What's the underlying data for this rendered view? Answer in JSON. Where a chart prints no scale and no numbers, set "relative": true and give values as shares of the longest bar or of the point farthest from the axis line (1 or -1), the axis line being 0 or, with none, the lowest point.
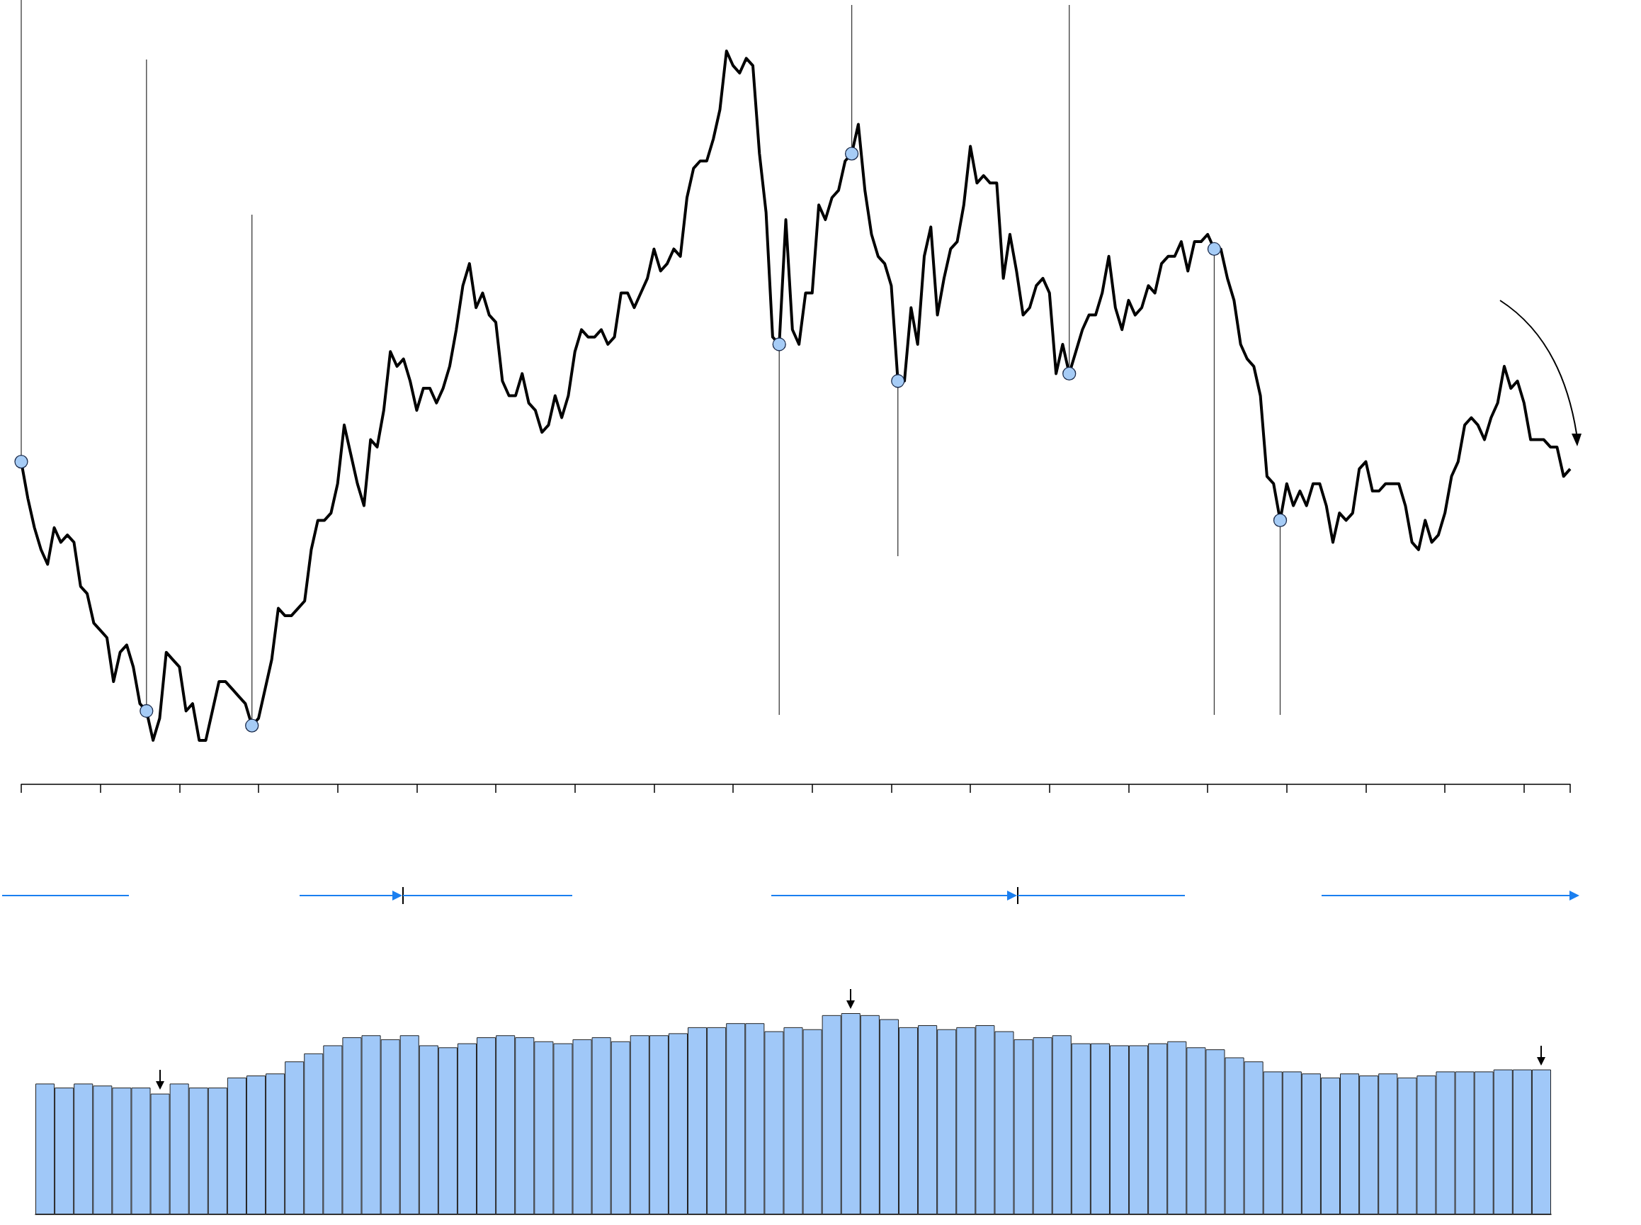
{
  "chart_data": [
    {
      "type": "line",
      "relative": true,
      "categories": [
        null,
        null,
        null,
        null,
        null,
        null,
        null,
        null,
        null,
        null,
        null,
        null,
        null,
        null,
        null,
        null,
        null,
        null,
        null,
        null,
        null,
        null,
        null,
        null,
        null,
        null,
        null,
        null,
        null,
        null,
        null,
        null,
        null,
        null,
        null,
        null,
        null,
        null,
        null,
        null,
        null,
        null,
        null,
        null,
        null,
        null,
        null,
        null,
        null,
        null,
        null,
        null,
        null,
        null,
        null,
        null,
        null,
        null,
        null,
        null,
        null,
        null,
        null,
        null,
        null,
        null,
        null,
        null,
        null,
        null,
        null,
        null,
        null,
        null,
        null,
        null,
        null,
        null,
        null,
        null,
        null,
        null,
        null,
        null,
        null,
        null,
        null,
        null,
        null,
        null,
        null,
        null,
        null,
        null,
        null,
        null,
        null,
        null,
        null,
        null,
        null,
        null,
        null,
        null,
        null,
        null,
        null,
        null,
        null,
        null,
        null,
        null,
        null,
        null,
        null,
        null,
        null,
        null,
        null,
        null,
        null,
        null,
        null,
        null,
        null,
        null,
        null,
        null,
        null,
        null,
        null,
        null,
        null,
        null,
        null,
        null,
        null,
        null,
        null,
        null,
        null,
        null,
        null,
        null,
        null,
        null,
        null,
        null,
        null,
        null,
        null,
        null,
        null,
        null,
        null,
        null,
        null,
        null,
        null,
        null,
        null,
        null,
        null,
        null,
        null,
        null,
        null,
        null,
        null,
        null,
        null,
        null,
        null,
        null,
        null,
        null,
        null,
        null,
        null,
        null,
        null,
        null,
        null,
        null,
        null,
        null,
        null,
        null,
        null,
        null,
        null,
        null,
        null,
        null,
        null,
        null,
        null,
        null,
        null,
        null,
        null,
        null,
        null,
        null,
        null,
        null,
        null,
        null,
        null,
        null,
        null,
        null,
        null,
        null,
        null,
        null,
        null,
        null,
        null,
        null,
        null,
        null,
        null,
        null,
        null,
        null,
        null,
        null,
        null,
        null,
        null,
        null,
        null,
        null,
        null,
        null
      ],
      "series": [
        {
          "type": "line",
          "color": "#000000",
          "values": [
            0.44,
            0.39,
            0.35,
            0.32,
            0.3,
            0.35,
            0.33,
            0.34,
            0.33,
            0.27,
            0.26,
            0.22,
            0.21,
            0.2,
            0.14,
            0.18,
            0.19,
            0.16,
            0.11,
            0.1,
            0.06,
            0.09,
            0.18,
            0.17,
            0.16,
            0.1,
            0.11,
            0.06,
            0.06,
            0.1,
            0.14,
            0.14,
            0.13,
            0.12,
            0.11,
            0.08,
            0.09,
            0.13,
            0.17,
            0.24,
            0.23,
            0.23,
            0.24,
            0.25,
            0.32,
            0.36,
            0.36,
            0.37,
            0.41,
            0.49,
            0.45,
            0.41,
            0.38,
            0.47,
            0.46,
            0.51,
            0.59,
            0.57,
            0.58,
            0.55,
            0.51,
            0.54,
            0.54,
            0.52,
            0.54,
            0.57,
            0.62,
            0.68,
            0.71,
            0.65,
            0.67,
            0.64,
            0.63,
            0.55,
            0.53,
            0.53,
            0.56,
            0.52,
            0.51,
            0.48,
            0.49,
            0.53,
            0.5,
            0.53,
            0.59,
            0.62,
            0.61,
            0.61,
            0.62,
            0.6,
            0.61,
            0.67,
            0.67,
            0.65,
            0.67,
            0.69,
            0.73,
            0.7,
            0.71,
            0.73,
            0.72,
            0.8,
            0.84,
            0.85,
            0.85,
            0.88,
            0.92,
            1,
            0.98,
            0.97,
            0.99,
            0.98,
            0.86,
            0.78,
            0.61,
            0.6,
            0.77,
            0.62,
            0.6,
            0.67,
            0.67,
            0.79,
            0.77,
            0.8,
            0.81,
            0.85,
            0.86,
            0.9,
            0.81,
            0.75,
            0.72,
            0.71,
            0.68,
            0.55,
            0.55,
            0.65,
            0.6,
            0.72,
            0.76,
            0.64,
            0.69,
            0.73,
            0.74,
            0.79,
            0.87,
            0.82,
            0.83,
            0.82,
            0.82,
            0.69,
            0.75,
            0.7,
            0.64,
            0.65,
            0.68,
            0.69,
            0.67,
            0.56,
            0.6,
            0.56,
            0.59,
            0.62,
            0.64,
            0.64,
            0.67,
            0.72,
            0.65,
            0.62,
            0.66,
            0.64,
            0.65,
            0.68,
            0.67,
            0.71,
            0.72,
            0.72,
            0.74,
            0.7,
            0.74,
            0.74,
            0.75,
            0.73,
            0.73,
            0.69,
            0.66,
            0.6,
            0.58,
            0.57,
            0.53,
            0.42,
            0.41,
            0.36,
            0.41,
            0.38,
            0.4,
            0.38,
            0.41,
            0.41,
            0.38,
            0.33,
            0.37,
            0.36,
            0.37,
            0.43,
            0.44,
            0.4,
            0.4,
            0.41,
            0.41,
            0.41,
            0.38,
            0.33,
            0.32,
            0.36,
            0.33,
            0.34,
            0.37,
            0.42,
            0.44,
            0.49,
            0.5,
            0.49,
            0.47,
            0.5,
            0.52,
            0.57,
            0.54,
            0.55,
            0.52,
            0.47,
            0.47,
            0.47,
            0.46,
            0.46,
            0.42,
            0.43
          ]
        }
      ]
    },
    {
      "type": "bar",
      "relative": true,
      "color": "#a0c8f8",
      "categories": [
        null,
        null,
        null,
        null,
        null,
        null,
        null,
        null,
        null,
        null,
        null,
        null,
        null,
        null,
        null,
        null,
        null,
        null,
        null,
        null,
        null,
        null,
        null,
        null,
        null,
        null,
        null,
        null,
        null,
        null,
        null,
        null,
        null,
        null,
        null,
        null,
        null,
        null,
        null,
        null,
        null,
        null,
        null,
        null,
        null,
        null,
        null,
        null,
        null,
        null,
        null,
        null,
        null,
        null,
        null,
        null,
        null,
        null,
        null,
        null,
        null,
        null,
        null,
        null,
        null,
        null,
        null,
        null,
        null,
        null,
        null,
        null,
        null,
        null,
        null,
        null,
        null,
        null,
        null
      ],
      "values": [
        0.65,
        0.63,
        0.65,
        0.64,
        0.63,
        0.63,
        0.6,
        0.65,
        0.63,
        0.63,
        0.68,
        0.69,
        0.7,
        0.76,
        0.8,
        0.84,
        0.88,
        0.89,
        0.87,
        0.89,
        0.84,
        0.83,
        0.85,
        0.88,
        0.89,
        0.88,
        0.86,
        0.85,
        0.87,
        0.88,
        0.86,
        0.89,
        0.89,
        0.9,
        0.93,
        0.93,
        0.95,
        0.95,
        0.91,
        0.93,
        0.92,
        0.99,
        1,
        0.99,
        0.97,
        0.93,
        0.94,
        0.92,
        0.93,
        0.94,
        0.91,
        0.87,
        0.88,
        0.89,
        0.85,
        0.85,
        0.84,
        0.84,
        0.85,
        0.86,
        0.83,
        0.82,
        0.78,
        0.76,
        0.71,
        0.71,
        0.7,
        0.68,
        0.7,
        0.69,
        0.7,
        0.68,
        0.69,
        0.71,
        0.71,
        0.71,
        0.72,
        0.72,
        0.72
      ]
    }
  ]
}
